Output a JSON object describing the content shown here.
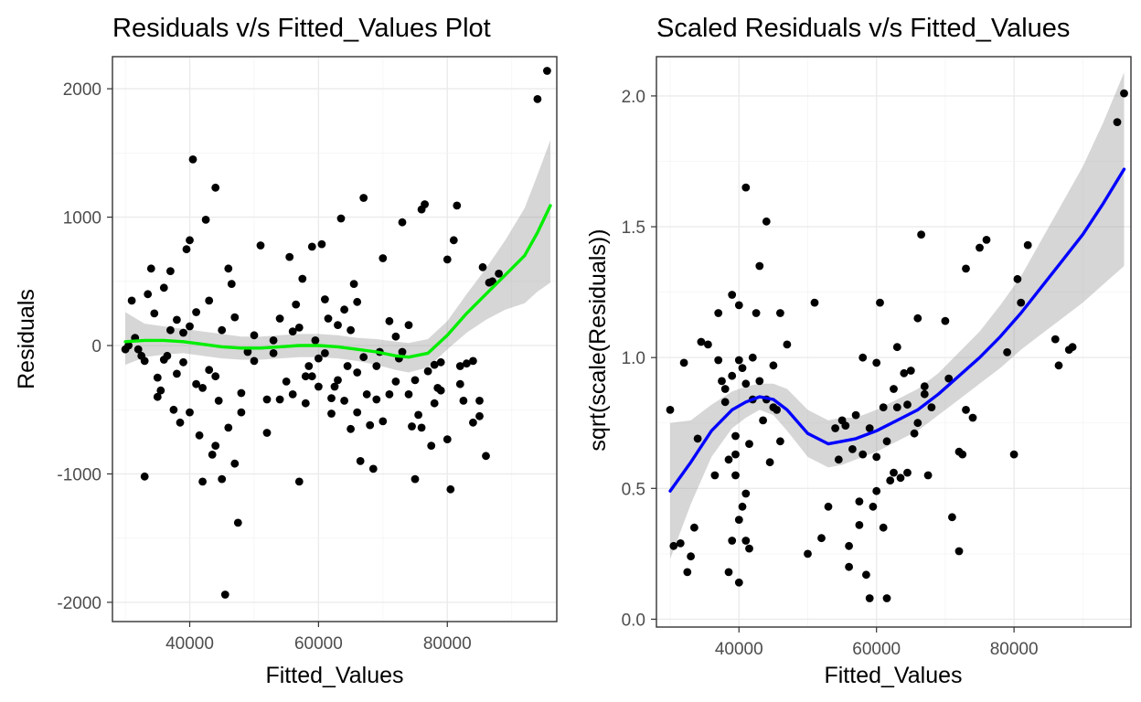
{
  "colors": {
    "left_smooth": "#00ee00",
    "right_smooth": "#0000ff",
    "band": "#999999",
    "points": "#000000"
  },
  "chart_data": [
    {
      "type": "scatter",
      "title": "Residuals v/s Fitted_Values Plot",
      "xlabel": "Fitted_Values",
      "ylabel": "Residuals",
      "xlim": [
        28000,
        97000
      ],
      "ylim": [
        -2150,
        2250
      ],
      "x_ticks": [
        40000,
        60000,
        80000
      ],
      "x_tick_labels": [
        "40000",
        "60000",
        "80000"
      ],
      "y_ticks": [
        -2000,
        -1000,
        0,
        1000,
        2000
      ],
      "y_tick_labels": [
        "-2000",
        "-1000",
        "0",
        "1000",
        "2000"
      ],
      "grid": true,
      "smooth": {
        "color": "#00ee00",
        "x": [
          30000,
          33000,
          36000,
          39000,
          42000,
          45000,
          48000,
          51000,
          54000,
          57000,
          60000,
          63000,
          66000,
          69000,
          72000,
          74000,
          77000,
          80000,
          83000,
          86000,
          89000,
          92000,
          94000,
          96000
        ],
        "y": [
          30,
          40,
          40,
          30,
          10,
          -10,
          -20,
          -20,
          -10,
          0,
          0,
          -10,
          -30,
          -50,
          -80,
          -90,
          -60,
          80,
          250,
          400,
          550,
          700,
          880,
          1090
        ],
        "lower": [
          -150,
          -90,
          -70,
          -60,
          -80,
          -100,
          -110,
          -110,
          -100,
          -90,
          -90,
          -100,
          -120,
          -150,
          -190,
          -210,
          -170,
          -30,
          100,
          200,
          280,
          330,
          420,
          490
        ],
        "upper": [
          260,
          170,
          150,
          130,
          110,
          90,
          70,
          70,
          80,
          90,
          90,
          80,
          60,
          50,
          30,
          20,
          50,
          190,
          400,
          600,
          820,
          1070,
          1330,
          1600
        ]
      },
      "points": [
        [
          30000,
          -30
        ],
        [
          30500,
          0
        ],
        [
          31000,
          350
        ],
        [
          31500,
          60
        ],
        [
          32000,
          -30
        ],
        [
          32500,
          -80
        ],
        [
          33000,
          -120
        ],
        [
          33500,
          400
        ],
        [
          34000,
          600
        ],
        [
          34500,
          250
        ],
        [
          35000,
          -250
        ],
        [
          35500,
          -350
        ],
        [
          36000,
          450
        ],
        [
          36500,
          -80
        ],
        [
          37000,
          580
        ],
        [
          37500,
          -500
        ],
        [
          38000,
          200
        ],
        [
          38500,
          -600
        ],
        [
          39000,
          100
        ],
        [
          39500,
          750
        ],
        [
          40000,
          820
        ],
        [
          40500,
          1450
        ],
        [
          41000,
          -300
        ],
        [
          41500,
          -700
        ],
        [
          42000,
          -1060
        ],
        [
          42500,
          980
        ],
        [
          43000,
          350
        ],
        [
          43500,
          -850
        ],
        [
          44000,
          1230
        ],
        [
          44500,
          -430
        ],
        [
          45000,
          -1040
        ],
        [
          45500,
          -1940
        ],
        [
          46000,
          600
        ],
        [
          46500,
          480
        ],
        [
          47000,
          -920
        ],
        [
          47500,
          -1380
        ],
        [
          48000,
          -370
        ],
        [
          49000,
          -50
        ],
        [
          50000,
          80
        ],
        [
          51000,
          780
        ],
        [
          52000,
          -680
        ],
        [
          53000,
          40
        ],
        [
          54000,
          -420
        ],
        [
          55000,
          -280
        ],
        [
          55500,
          690
        ],
        [
          56000,
          -380
        ],
        [
          56500,
          320
        ],
        [
          57000,
          -1060
        ],
        [
          57500,
          520
        ],
        [
          58000,
          -240
        ],
        [
          58500,
          -160
        ],
        [
          59000,
          770
        ],
        [
          59500,
          40
        ],
        [
          60000,
          -320
        ],
        [
          60500,
          790
        ],
        [
          61000,
          -60
        ],
        [
          61500,
          210
        ],
        [
          62000,
          -530
        ],
        [
          62500,
          -320
        ],
        [
          63000,
          160
        ],
        [
          63500,
          990
        ],
        [
          64000,
          -430
        ],
        [
          64500,
          -160
        ],
        [
          65000,
          -650
        ],
        [
          65500,
          480
        ],
        [
          66000,
          -520
        ],
        [
          66500,
          -900
        ],
        [
          67000,
          1150
        ],
        [
          67500,
          -380
        ],
        [
          68000,
          -620
        ],
        [
          68500,
          -960
        ],
        [
          69000,
          -160
        ],
        [
          69500,
          -50
        ],
        [
          70000,
          680
        ],
        [
          71000,
          -380
        ],
        [
          72000,
          70
        ],
        [
          72500,
          -100
        ],
        [
          73000,
          960
        ],
        [
          74000,
          -380
        ],
        [
          74500,
          -630
        ],
        [
          75000,
          -1040
        ],
        [
          75500,
          -540
        ],
        [
          76000,
          1060
        ],
        [
          76500,
          1100
        ],
        [
          77000,
          -200
        ],
        [
          77500,
          -780
        ],
        [
          78000,
          -450
        ],
        [
          78500,
          -330
        ],
        [
          79000,
          -130
        ],
        [
          80000,
          670
        ],
        [
          80500,
          -1120
        ],
        [
          81000,
          820
        ],
        [
          81500,
          1090
        ],
        [
          82000,
          -160
        ],
        [
          82500,
          -430
        ],
        [
          83000,
          -140
        ],
        [
          84000,
          -600
        ],
        [
          85000,
          -550
        ],
        [
          85500,
          610
        ],
        [
          86000,
          -860
        ],
        [
          86500,
          490
        ],
        [
          87000,
          500
        ],
        [
          88000,
          560
        ],
        [
          94000,
          1920
        ],
        [
          95500,
          2140
        ],
        [
          33000,
          -1020
        ],
        [
          35000,
          -400
        ],
        [
          38000,
          -220
        ],
        [
          40000,
          -520
        ],
        [
          42000,
          -330
        ],
        [
          44000,
          -780
        ],
        [
          46000,
          -640
        ],
        [
          48000,
          -520
        ],
        [
          52000,
          -420
        ],
        [
          54000,
          210
        ],
        [
          56000,
          110
        ],
        [
          60000,
          -100
        ],
        [
          62000,
          -410
        ],
        [
          64000,
          280
        ],
        [
          66000,
          340
        ],
        [
          70000,
          -590
        ],
        [
          72000,
          -280
        ],
        [
          76000,
          -640
        ],
        [
          78000,
          -150
        ],
        [
          80000,
          -730
        ],
        [
          84000,
          -120
        ],
        [
          85000,
          -430
        ],
        [
          37000,
          120
        ],
        [
          39000,
          -130
        ],
        [
          41000,
          260
        ],
        [
          43000,
          -190
        ],
        [
          45000,
          120
        ],
        [
          47000,
          220
        ],
        [
          53000,
          -60
        ],
        [
          57000,
          140
        ],
        [
          59000,
          -240
        ],
        [
          61000,
          360
        ],
        [
          63000,
          -270
        ],
        [
          65000,
          120
        ],
        [
          67000,
          -90
        ],
        [
          69000,
          -420
        ],
        [
          71000,
          190
        ],
        [
          73000,
          -50
        ],
        [
          75000,
          -270
        ],
        [
          79000,
          -350
        ],
        [
          36000,
          -110
        ],
        [
          40000,
          150
        ],
        [
          44000,
          -240
        ],
        [
          50000,
          -120
        ],
        [
          58000,
          -450
        ],
        [
          66000,
          -210
        ],
        [
          74000,
          160
        ],
        [
          82000,
          -300
        ]
      ]
    },
    {
      "type": "scatter",
      "title": "Scaled Residuals v/s Fitted_Values",
      "xlabel": "Fitted_Values",
      "ylabel": "sqrt(scale(Residuals))",
      "xlim": [
        28000,
        97000
      ],
      "ylim": [
        -0.03,
        2.15
      ],
      "x_ticks": [
        40000,
        60000,
        80000
      ],
      "x_tick_labels": [
        "40000",
        "60000",
        "80000"
      ],
      "y_ticks": [
        0.0,
        0.5,
        1.0,
        1.5,
        2.0
      ],
      "y_tick_labels": [
        "0.0",
        "0.5",
        "1.0",
        "1.5",
        "2.0"
      ],
      "grid": true,
      "smooth": {
        "color": "#0000ff",
        "x": [
          30000,
          33000,
          36000,
          39000,
          41000,
          43000,
          45000,
          47000,
          50000,
          53000,
          55000,
          57000,
          60000,
          63000,
          66000,
          69000,
          72000,
          75000,
          78000,
          81000,
          84000,
          87000,
          90000,
          93000,
          96000
        ],
        "y": [
          0.49,
          0.6,
          0.72,
          0.8,
          0.83,
          0.85,
          0.84,
          0.8,
          0.71,
          0.67,
          0.68,
          0.69,
          0.72,
          0.76,
          0.8,
          0.86,
          0.93,
          1.0,
          1.08,
          1.17,
          1.27,
          1.37,
          1.47,
          1.59,
          1.72
        ],
        "lower": [
          0.23,
          0.44,
          0.62,
          0.73,
          0.77,
          0.8,
          0.78,
          0.72,
          0.62,
          0.58,
          0.59,
          0.61,
          0.64,
          0.68,
          0.72,
          0.78,
          0.84,
          0.9,
          0.96,
          1.03,
          1.09,
          1.15,
          1.21,
          1.28,
          1.35
        ],
        "upper": [
          0.75,
          0.76,
          0.82,
          0.87,
          0.89,
          0.9,
          0.9,
          0.88,
          0.8,
          0.76,
          0.77,
          0.77,
          0.8,
          0.84,
          0.88,
          0.94,
          1.02,
          1.1,
          1.2,
          1.31,
          1.45,
          1.59,
          1.73,
          1.9,
          2.09
        ]
      },
      "points": [
        [
          30000,
          0.8
        ],
        [
          30500,
          0.28
        ],
        [
          31500,
          0.29
        ],
        [
          32000,
          0.98
        ],
        [
          32500,
          0.18
        ],
        [
          33000,
          0.24
        ],
        [
          33500,
          0.35
        ],
        [
          34000,
          0.69
        ],
        [
          34500,
          1.06
        ],
        [
          35500,
          1.05
        ],
        [
          36500,
          0.55
        ],
        [
          37000,
          1.17
        ],
        [
          37500,
          0.91
        ],
        [
          38000,
          0.83
        ],
        [
          38500,
          0.61
        ],
        [
          39000,
          1.24
        ],
        [
          39500,
          0.55
        ],
        [
          40000,
          1.2
        ],
        [
          40500,
          0.96
        ],
        [
          41000,
          1.65
        ],
        [
          41500,
          0.67
        ],
        [
          42000,
          0.84
        ],
        [
          42500,
          1.17
        ],
        [
          43000,
          1.35
        ],
        [
          43500,
          0.76
        ],
        [
          44000,
          1.52
        ],
        [
          44500,
          0.6
        ],
        [
          45000,
          0.97
        ],
        [
          45500,
          0.8
        ],
        [
          46000,
          1.17
        ],
        [
          47000,
          1.05
        ],
        [
          50000,
          0.25
        ],
        [
          51000,
          1.21
        ],
        [
          52000,
          0.31
        ],
        [
          53000,
          0.43
        ],
        [
          54000,
          0.73
        ],
        [
          55000,
          0.76
        ],
        [
          56000,
          0.2
        ],
        [
          56500,
          0.65
        ],
        [
          57000,
          0.78
        ],
        [
          57500,
          0.36
        ],
        [
          58000,
          0.63
        ],
        [
          58500,
          0.17
        ],
        [
          59000,
          0.08
        ],
        [
          59500,
          0.43
        ],
        [
          60000,
          0.62
        ],
        [
          60500,
          1.21
        ],
        [
          61000,
          0.81
        ],
        [
          61500,
          0.08
        ],
        [
          62000,
          0.53
        ],
        [
          62500,
          0.88
        ],
        [
          63000,
          1.04
        ],
        [
          63500,
          0.54
        ],
        [
          64000,
          0.94
        ],
        [
          64500,
          0.56
        ],
        [
          65000,
          0.95
        ],
        [
          65500,
          0.71
        ],
        [
          66000,
          1.15
        ],
        [
          66500,
          1.47
        ],
        [
          67000,
          0.89
        ],
        [
          67500,
          0.55
        ],
        [
          70000,
          1.14
        ],
        [
          71000,
          0.39
        ],
        [
          72000,
          0.64
        ],
        [
          73000,
          1.34
        ],
        [
          74000,
          0.77
        ],
        [
          75000,
          1.42
        ],
        [
          76000,
          1.45
        ],
        [
          79000,
          1.02
        ],
        [
          80000,
          0.63
        ],
        [
          80500,
          1.3
        ],
        [
          81000,
          1.21
        ],
        [
          82000,
          1.43
        ],
        [
          86000,
          1.07
        ],
        [
          86500,
          0.97
        ],
        [
          88000,
          1.03
        ],
        [
          88500,
          1.04
        ],
        [
          95000,
          1.9
        ],
        [
          96000,
          2.01
        ],
        [
          37000,
          0.99
        ],
        [
          38000,
          0.88
        ],
        [
          39000,
          0.93
        ],
        [
          40000,
          0.99
        ],
        [
          41000,
          0.9
        ],
        [
          42000,
          1.0
        ],
        [
          43000,
          0.91
        ],
        [
          44000,
          0.84
        ],
        [
          45000,
          0.81
        ],
        [
          46000,
          0.68
        ],
        [
          39500,
          0.63
        ],
        [
          40500,
          0.43
        ],
        [
          41000,
          0.3
        ],
        [
          41500,
          0.27
        ],
        [
          40000,
          0.14
        ],
        [
          38500,
          0.18
        ],
        [
          39000,
          0.3
        ],
        [
          40000,
          0.38
        ],
        [
          39500,
          0.7
        ],
        [
          41000,
          0.48
        ],
        [
          55500,
          0.74
        ],
        [
          58000,
          1.0
        ],
        [
          60000,
          0.98
        ],
        [
          59000,
          0.73
        ],
        [
          61500,
          0.68
        ],
        [
          63000,
          0.81
        ],
        [
          64500,
          0.82
        ],
        [
          67000,
          0.86
        ],
        [
          68000,
          0.81
        ],
        [
          72500,
          0.63
        ],
        [
          73000,
          0.8
        ],
        [
          72000,
          0.26
        ],
        [
          54500,
          0.61
        ],
        [
          56000,
          0.28
        ],
        [
          57500,
          0.45
        ],
        [
          60000,
          0.49
        ],
        [
          61000,
          0.35
        ],
        [
          62500,
          0.56
        ],
        [
          66000,
          0.75
        ],
        [
          70500,
          0.92
        ]
      ]
    }
  ]
}
